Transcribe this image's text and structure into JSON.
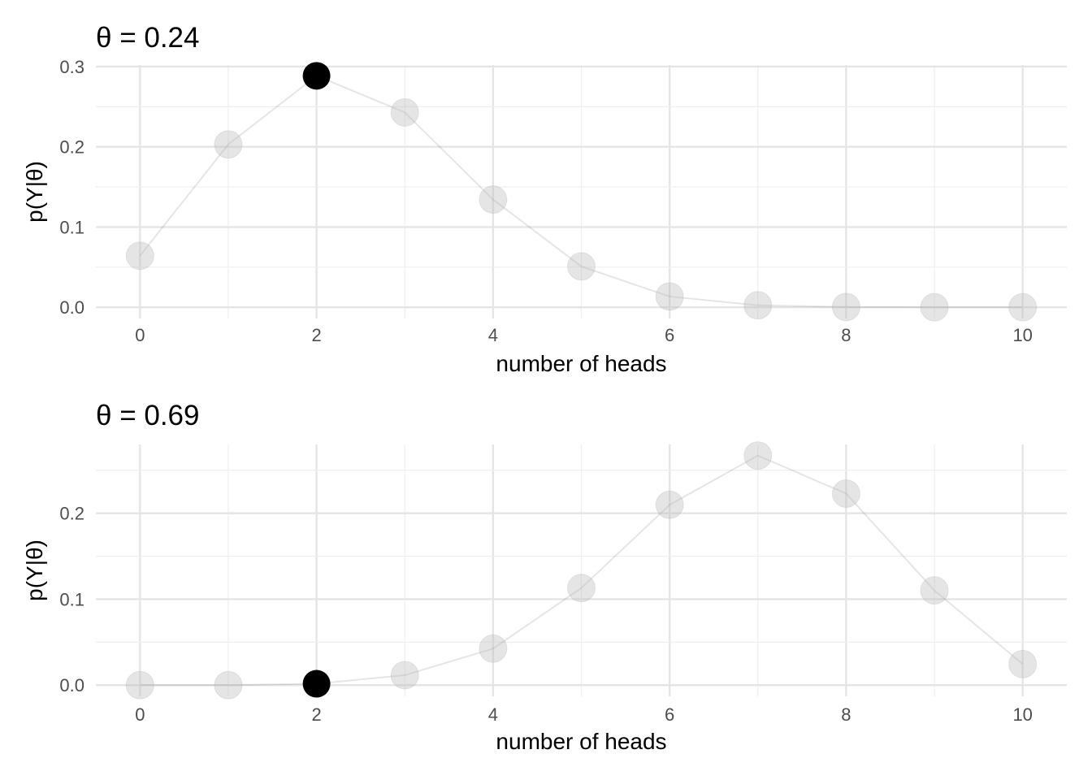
{
  "chart_data": [
    {
      "type": "scatter",
      "title": "θ = 0.24",
      "xlabel": "number of heads",
      "ylabel": "p(Y|θ)",
      "x": [
        0,
        1,
        2,
        3,
        4,
        5,
        6,
        7,
        8,
        9,
        10
      ],
      "y": [
        0.0643,
        0.203,
        0.2885,
        0.2429,
        0.1343,
        0.0509,
        0.0134,
        0.0024,
        0.0003,
        0.0,
        0.0
      ],
      "highlight_x": 2,
      "xlim": [
        -0.5,
        10.5
      ],
      "ylim": [
        -0.014,
        0.302
      ],
      "xticks": [
        "0",
        "2",
        "4",
        "6",
        "8",
        "10"
      ],
      "yticks": [
        "0.0",
        "0.1",
        "0.2",
        "0.3"
      ],
      "grid": true,
      "connect_points": true
    },
    {
      "type": "scatter",
      "title": "θ = 0.69",
      "xlabel": "number of heads",
      "ylabel": "p(Y|θ)",
      "x": [
        0,
        1,
        2,
        3,
        4,
        5,
        6,
        7,
        8,
        9,
        10
      ],
      "y": [
        0.0,
        0.0,
        0.0016,
        0.0116,
        0.0425,
        0.113,
        0.2098,
        0.267,
        0.2228,
        0.1102,
        0.0245
      ],
      "highlight_x": 2,
      "xlim": [
        -0.5,
        10.5
      ],
      "ylim": [
        -0.013,
        0.28
      ],
      "xticks": [
        "0",
        "2",
        "4",
        "6",
        "8",
        "10"
      ],
      "yticks": [
        "0.0",
        "0.1",
        "0.2"
      ],
      "grid": true,
      "connect_points": true
    }
  ]
}
